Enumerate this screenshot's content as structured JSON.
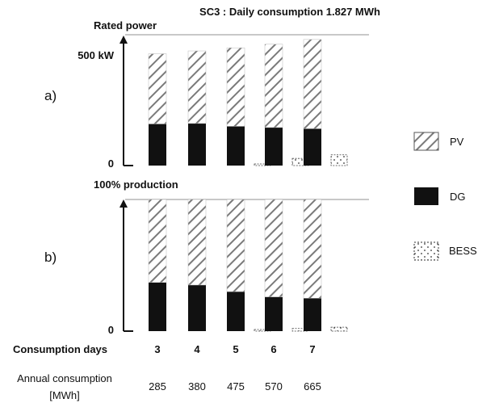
{
  "title": "SC3 : Daily consumption 1.827 MWh",
  "panel_a": {
    "label": "a)",
    "ref_label": "Rated power",
    "tick_top": "500 kW",
    "tick_zero": "0"
  },
  "panel_b": {
    "label": "b)",
    "ref_label": "100% production",
    "tick_zero": "0"
  },
  "legend": [
    {
      "name": "PV",
      "pattern": "hatch"
    },
    {
      "name": "DG",
      "pattern": "solid"
    },
    {
      "name": "BESS",
      "pattern": "dotted"
    }
  ],
  "row_labels": {
    "consumption_days": "Consumption days",
    "annual_consumption_line1": "Annual consumption",
    "annual_consumption_line2": "[MWh]"
  },
  "chart_data": [
    {
      "type": "bar",
      "stacked": true,
      "panel": "a",
      "categories": [
        "3",
        "4",
        "5",
        "6",
        "7"
      ],
      "ylabel": "Rated power",
      "ylim": [
        0,
        550
      ],
      "series": [
        {
          "name": "DG",
          "values": [
            175,
            177,
            165,
            160,
            155
          ]
        },
        {
          "name": "PV",
          "values": [
            295,
            305,
            330,
            350,
            375
          ]
        },
        {
          "name": "BESS",
          "values": [
            0,
            0,
            5,
            30,
            45
          ]
        }
      ]
    },
    {
      "type": "bar",
      "stacked": true,
      "panel": "b",
      "categories": [
        "3",
        "4",
        "5",
        "6",
        "7"
      ],
      "ylabel": "100% production",
      "ylim": [
        0,
        100
      ],
      "series": [
        {
          "name": "DG",
          "values": [
            37,
            35,
            30,
            26,
            25
          ]
        },
        {
          "name": "PV",
          "values": [
            63,
            65,
            70,
            74,
            75
          ]
        },
        {
          "name": "BESS",
          "values": [
            0,
            0,
            1,
            2,
            3
          ]
        }
      ]
    }
  ],
  "x_axis": {
    "consumption_days": [
      "3",
      "4",
      "5",
      "6",
      "7"
    ],
    "annual_consumption": [
      "285",
      "380",
      "475",
      "570",
      "665"
    ]
  },
  "colors": {
    "dg": "#111111",
    "pv_stroke": "#7a7a7a",
    "ref_line": "#c8c8c8"
  }
}
